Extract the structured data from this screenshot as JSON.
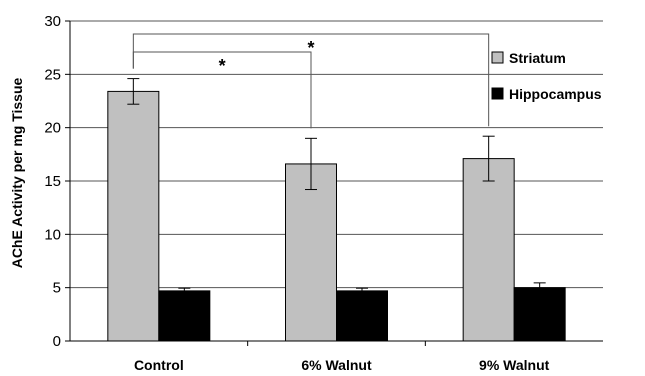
{
  "chart_data": {
    "type": "bar",
    "title": "",
    "xlabel": "",
    "ylabel": "AChE Activity per mg Tissue",
    "ylim": [
      0,
      30
    ],
    "yticks": [
      0,
      5,
      10,
      15,
      20,
      25,
      30
    ],
    "grid": "horizontal",
    "legend_position": "right",
    "categories": [
      "Control",
      "6% Walnut",
      "9% Walnut"
    ],
    "series": [
      {
        "name": "Striatum",
        "color": "#c0c0c0",
        "values": [
          23.4,
          16.6,
          17.1
        ],
        "errors": [
          1.2,
          2.4,
          2.1
        ]
      },
      {
        "name": "Hippocampus",
        "color": "#000000",
        "values": [
          4.7,
          4.7,
          5.0
        ],
        "errors": [
          0.25,
          0.25,
          0.45
        ]
      }
    ],
    "annotations": [
      {
        "text": "*",
        "from_category": 0,
        "to_category": 1,
        "level": 2
      },
      {
        "text": "*",
        "from_category": 0,
        "to_category": 2,
        "level": 1
      }
    ]
  }
}
